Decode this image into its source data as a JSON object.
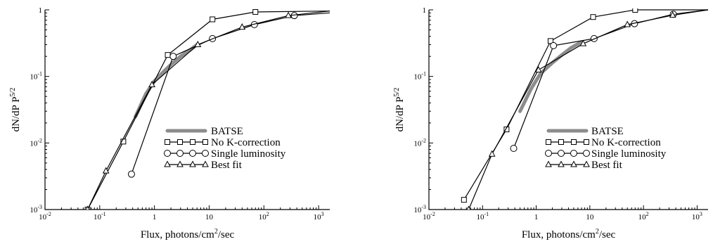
{
  "chart_data": [
    {
      "type": "line",
      "xlabel": "Flux, photons/cm",
      "xlabel_sup": "2",
      "xlabel_tail": "/sec",
      "ylabel": "dN/dP P",
      "ylabel_sup": "5/2",
      "xscale": "log",
      "yscale": "log",
      "xlim": [
        0.01,
        1600
      ],
      "ylim": [
        0.001,
        1
      ],
      "x_ticks": [
        {
          "value": 0.01,
          "base": "10",
          "exp": "-2"
        },
        {
          "value": 0.1,
          "base": "10",
          "exp": "-1"
        },
        {
          "value": 1,
          "base": "1",
          "exp": ""
        },
        {
          "value": 10,
          "base": "10",
          "exp": ""
        },
        {
          "value": 100,
          "base": "10",
          "exp": "2"
        },
        {
          "value": 1000,
          "base": "10",
          "exp": "3"
        }
      ],
      "y_ticks": [
        {
          "value": 0.001,
          "base": "10",
          "exp": "-3"
        },
        {
          "value": 0.01,
          "base": "10",
          "exp": "-2"
        },
        {
          "value": 0.1,
          "base": "10",
          "exp": "-1"
        },
        {
          "value": 1,
          "base": "1",
          "exp": ""
        }
      ],
      "legend_position": "lower-right",
      "series": [
        {
          "name": "BATSE",
          "style": "band",
          "color": "#8c8c8c",
          "x": [
            0.45,
            0.7,
            1.0,
            1.5,
            2.0,
            3.0,
            4.5,
            6.0
          ],
          "y": [
            0.025,
            0.055,
            0.085,
            0.12,
            0.15,
            0.2,
            0.25,
            0.3
          ]
        },
        {
          "name": "No K-correction",
          "marker": "square",
          "x": [
            0.06,
            0.27,
            1.75,
            11.5,
            70,
            1600
          ],
          "y": [
            0.001,
            0.0105,
            0.21,
            0.72,
            0.93,
            0.96
          ]
        },
        {
          "name": "Single luminosity",
          "marker": "circle",
          "x": [
            0.38,
            2.2,
            11.5,
            67,
            360,
            1600
          ],
          "y": [
            0.0034,
            0.2,
            0.37,
            0.6,
            0.82,
            0.9
          ]
        },
        {
          "name": "Best fit",
          "marker": "triangle",
          "x": [
            0.06,
            0.13,
            0.9,
            6.2,
            40,
            280,
            1600
          ],
          "y": [
            0.001,
            0.0038,
            0.075,
            0.3,
            0.55,
            0.82,
            0.96
          ]
        }
      ]
    },
    {
      "type": "line",
      "xlabel": "Flux, photons/cm",
      "xlabel_sup": "2",
      "xlabel_tail": "/sec",
      "ylabel": "dN/dP P",
      "ylabel_sup": "5/2",
      "xscale": "log",
      "yscale": "log",
      "xlim": [
        0.01,
        1600
      ],
      "ylim": [
        0.001,
        1
      ],
      "x_ticks": [
        {
          "value": 0.01,
          "base": "10",
          "exp": "-2"
        },
        {
          "value": 0.1,
          "base": "10",
          "exp": "-1"
        },
        {
          "value": 1,
          "base": "1",
          "exp": ""
        },
        {
          "value": 10,
          "base": "10",
          "exp": ""
        },
        {
          "value": 100,
          "base": "10",
          "exp": "2"
        },
        {
          "value": 1000,
          "base": "10",
          "exp": "3"
        }
      ],
      "y_ticks": [
        {
          "value": 0.001,
          "base": "10",
          "exp": "-3"
        },
        {
          "value": 0.01,
          "base": "10",
          "exp": "-2"
        },
        {
          "value": 0.1,
          "base": "10",
          "exp": "-1"
        },
        {
          "value": 1,
          "base": "1",
          "exp": ""
        }
      ],
      "legend_position": "lower-right",
      "series": [
        {
          "name": "BATSE",
          "style": "band",
          "color": "#8c8c8c",
          "x": [
            0.5,
            0.8,
            1.2,
            2.0,
            3.0,
            4.5,
            7.0
          ],
          "y": [
            0.03,
            0.065,
            0.11,
            0.16,
            0.21,
            0.27,
            0.33
          ]
        },
        {
          "name": "No K-correction",
          "marker": "square",
          "x": [
            0.045,
            0.28,
            1.85,
            11.5,
            70,
            1600
          ],
          "y": [
            0.0014,
            0.016,
            0.34,
            0.78,
            1.0,
            1.0
          ]
        },
        {
          "name": "Single luminosity",
          "marker": "circle",
          "x": [
            0.38,
            2.1,
            12,
            68,
            360,
            1600
          ],
          "y": [
            0.0083,
            0.29,
            0.37,
            0.62,
            0.86,
            1.0
          ]
        },
        {
          "name": "Best fit",
          "marker": "triangle",
          "x": [
            0.055,
            0.15,
            1.1,
            7.5,
            50,
            350,
            1600
          ],
          "y": [
            0.001,
            0.0068,
            0.125,
            0.31,
            0.6,
            0.83,
            1.0
          ]
        }
      ]
    }
  ]
}
